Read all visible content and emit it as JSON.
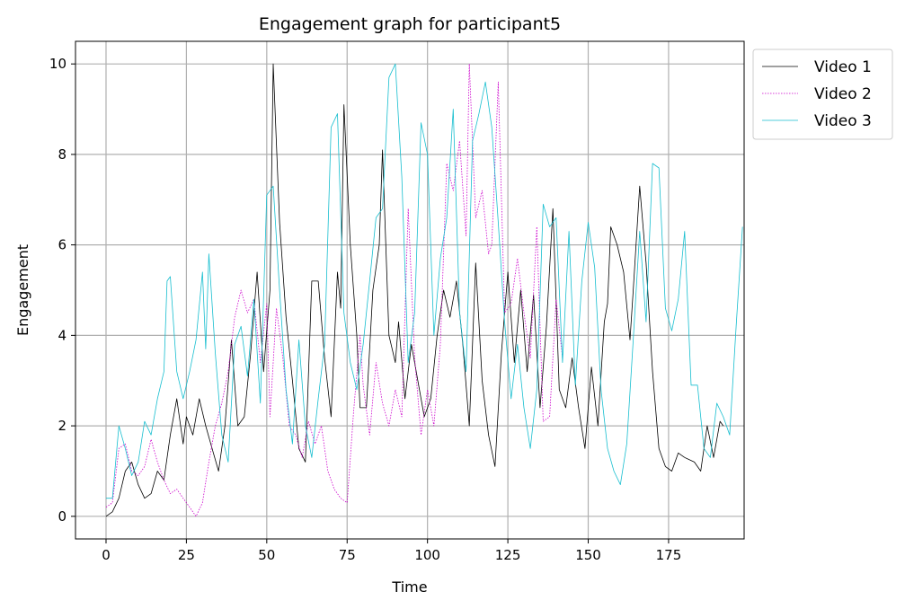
{
  "chart_data": {
    "type": "line",
    "title": "Engagement graph for participant5",
    "xlabel": "Time",
    "ylabel": "Engagement",
    "xlim": [
      -9.5,
      198.5
    ],
    "ylim": [
      -0.5,
      10.5
    ],
    "xticks": [
      0,
      25,
      50,
      75,
      100,
      125,
      150,
      175
    ],
    "yticks": [
      0,
      2,
      4,
      6,
      8,
      10
    ],
    "grid": true,
    "legend_position": "outside-top-right",
    "series": [
      {
        "name": "Video 1",
        "color": "#000000",
        "dash": "solid",
        "points": [
          [
            0,
            0
          ],
          [
            2,
            0.1
          ],
          [
            4,
            0.4
          ],
          [
            6,
            1.0
          ],
          [
            8,
            1.2
          ],
          [
            10,
            0.7
          ],
          [
            12,
            0.4
          ],
          [
            14,
            0.5
          ],
          [
            16,
            1.0
          ],
          [
            18,
            0.8
          ],
          [
            20,
            1.8
          ],
          [
            22,
            2.6
          ],
          [
            24,
            1.6
          ],
          [
            25,
            2.2
          ],
          [
            27,
            1.8
          ],
          [
            29,
            2.6
          ],
          [
            31,
            2.0
          ],
          [
            33,
            1.5
          ],
          [
            35,
            1.0
          ],
          [
            37,
            2.0
          ],
          [
            39,
            3.9
          ],
          [
            41,
            2.0
          ],
          [
            43,
            2.2
          ],
          [
            45,
            3.6
          ],
          [
            47,
            5.4
          ],
          [
            49,
            3.2
          ],
          [
            51,
            5.0
          ],
          [
            52,
            10.0
          ],
          [
            54,
            6.5
          ],
          [
            56,
            4.4
          ],
          [
            58,
            3.0
          ],
          [
            60,
            1.5
          ],
          [
            62,
            1.2
          ],
          [
            64,
            5.2
          ],
          [
            66,
            5.2
          ],
          [
            68,
            3.5
          ],
          [
            70,
            2.2
          ],
          [
            72,
            5.4
          ],
          [
            73,
            4.6
          ],
          [
            74,
            9.1
          ],
          [
            76,
            6.0
          ],
          [
            78,
            4.0
          ],
          [
            79,
            2.4
          ],
          [
            81,
            2.4
          ],
          [
            83,
            5.0
          ],
          [
            85,
            6.0
          ],
          [
            86,
            8.1
          ],
          [
            88,
            4.0
          ],
          [
            90,
            3.4
          ],
          [
            91,
            4.3
          ],
          [
            93,
            2.6
          ],
          [
            95,
            3.8
          ],
          [
            97,
            3.0
          ],
          [
            99,
            2.2
          ],
          [
            101,
            2.6
          ],
          [
            103,
            4.0
          ],
          [
            105,
            5.0
          ],
          [
            107,
            4.4
          ],
          [
            109,
            5.2
          ],
          [
            111,
            3.8
          ],
          [
            113,
            2.0
          ],
          [
            115,
            5.6
          ],
          [
            117,
            3.0
          ],
          [
            119,
            1.8
          ],
          [
            121,
            1.1
          ],
          [
            123,
            3.6
          ],
          [
            125,
            5.4
          ],
          [
            127,
            3.4
          ],
          [
            129,
            5.0
          ],
          [
            131,
            3.2
          ],
          [
            133,
            4.9
          ],
          [
            135,
            2.4
          ],
          [
            137,
            4.2
          ],
          [
            139,
            6.8
          ],
          [
            141,
            2.8
          ],
          [
            143,
            2.4
          ],
          [
            145,
            3.5
          ],
          [
            147,
            2.4
          ],
          [
            149,
            1.5
          ],
          [
            151,
            3.3
          ],
          [
            153,
            2.0
          ],
          [
            155,
            4.3
          ],
          [
            156,
            4.7
          ],
          [
            157,
            6.4
          ],
          [
            159,
            6.0
          ],
          [
            161,
            5.4
          ],
          [
            163,
            3.9
          ],
          [
            164,
            5.0
          ],
          [
            166,
            7.3
          ],
          [
            168,
            5.6
          ],
          [
            170,
            3.2
          ],
          [
            172,
            1.5
          ],
          [
            174,
            1.1
          ],
          [
            176,
            1.0
          ],
          [
            178,
            1.4
          ],
          [
            180,
            1.3
          ],
          [
            183,
            1.2
          ],
          [
            185,
            1.0
          ],
          [
            187,
            2.0
          ],
          [
            189,
            1.3
          ],
          [
            191,
            2.1
          ],
          [
            192,
            2.0
          ]
        ]
      },
      {
        "name": "Video 2",
        "color": "#cc00cc",
        "dash": "dotted",
        "points": [
          [
            0,
            0.2
          ],
          [
            2,
            0.3
          ],
          [
            4,
            1.5
          ],
          [
            6,
            1.6
          ],
          [
            8,
            1.0
          ],
          [
            10,
            0.9
          ],
          [
            12,
            1.1
          ],
          [
            14,
            1.7
          ],
          [
            16,
            1.2
          ],
          [
            18,
            0.8
          ],
          [
            20,
            0.5
          ],
          [
            22,
            0.6
          ],
          [
            24,
            0.4
          ],
          [
            26,
            0.2
          ],
          [
            28,
            0.0
          ],
          [
            30,
            0.3
          ],
          [
            32,
            1.2
          ],
          [
            34,
            2.0
          ],
          [
            36,
            2.5
          ],
          [
            38,
            3.2
          ],
          [
            40,
            4.4
          ],
          [
            42,
            5.0
          ],
          [
            44,
            4.5
          ],
          [
            46,
            4.8
          ],
          [
            48,
            3.4
          ],
          [
            50,
            4.7
          ],
          [
            51,
            2.2
          ],
          [
            53,
            4.6
          ],
          [
            55,
            3.5
          ],
          [
            57,
            2.0
          ],
          [
            59,
            1.8
          ],
          [
            61,
            1.3
          ],
          [
            63,
            2.1
          ],
          [
            65,
            1.6
          ],
          [
            67,
            2.0
          ],
          [
            69,
            1.0
          ],
          [
            71,
            0.6
          ],
          [
            73,
            0.4
          ],
          [
            75,
            0.3
          ],
          [
            77,
            2.3
          ],
          [
            79,
            4.0
          ],
          [
            80,
            2.9
          ],
          [
            82,
            1.8
          ],
          [
            84,
            3.4
          ],
          [
            86,
            2.5
          ],
          [
            88,
            2.0
          ],
          [
            90,
            2.8
          ],
          [
            92,
            2.2
          ],
          [
            94,
            6.8
          ],
          [
            96,
            3.5
          ],
          [
            98,
            1.8
          ],
          [
            100,
            2.8
          ],
          [
            102,
            2.0
          ],
          [
            104,
            3.8
          ],
          [
            106,
            7.8
          ],
          [
            108,
            7.2
          ],
          [
            110,
            8.3
          ],
          [
            112,
            6.2
          ],
          [
            113,
            10.0
          ],
          [
            115,
            6.6
          ],
          [
            117,
            7.2
          ],
          [
            119,
            5.8
          ],
          [
            120,
            6.0
          ],
          [
            122,
            9.6
          ],
          [
            124,
            4.5
          ],
          [
            126,
            4.7
          ],
          [
            128,
            5.7
          ],
          [
            130,
            4.5
          ],
          [
            132,
            3.5
          ],
          [
            134,
            6.4
          ],
          [
            136,
            2.1
          ],
          [
            138,
            2.2
          ],
          [
            140,
            4.8
          ],
          [
            142,
            3.5
          ]
        ]
      },
      {
        "name": "Video 3",
        "color": "#17becf",
        "dash": "solid",
        "points": [
          [
            0,
            0.4
          ],
          [
            2,
            0.4
          ],
          [
            4,
            2.0
          ],
          [
            6,
            1.5
          ],
          [
            8,
            0.9
          ],
          [
            10,
            1.2
          ],
          [
            12,
            2.1
          ],
          [
            14,
            1.8
          ],
          [
            16,
            2.6
          ],
          [
            18,
            3.2
          ],
          [
            19,
            5.2
          ],
          [
            20,
            5.3
          ],
          [
            22,
            3.2
          ],
          [
            24,
            2.6
          ],
          [
            26,
            3.2
          ],
          [
            28,
            3.9
          ],
          [
            30,
            5.4
          ],
          [
            31,
            3.7
          ],
          [
            32,
            5.8
          ],
          [
            34,
            3.6
          ],
          [
            36,
            1.8
          ],
          [
            38,
            1.2
          ],
          [
            40,
            3.8
          ],
          [
            42,
            4.2
          ],
          [
            44,
            3.1
          ],
          [
            46,
            4.8
          ],
          [
            48,
            2.5
          ],
          [
            50,
            7.1
          ],
          [
            52,
            7.3
          ],
          [
            54,
            5.0
          ],
          [
            56,
            2.8
          ],
          [
            58,
            1.6
          ],
          [
            60,
            3.9
          ],
          [
            62,
            2.0
          ],
          [
            64,
            1.3
          ],
          [
            66,
            2.6
          ],
          [
            68,
            3.8
          ],
          [
            70,
            8.6
          ],
          [
            72,
            8.9
          ],
          [
            74,
            4.5
          ],
          [
            76,
            3.4
          ],
          [
            78,
            2.8
          ],
          [
            80,
            3.8
          ],
          [
            82,
            5.2
          ],
          [
            84,
            6.6
          ],
          [
            86,
            6.8
          ],
          [
            88,
            9.7
          ],
          [
            90,
            10.0
          ],
          [
            92,
            7.5
          ],
          [
            94,
            3.4
          ],
          [
            96,
            4.5
          ],
          [
            98,
            8.7
          ],
          [
            100,
            8.0
          ],
          [
            102,
            4.0
          ],
          [
            104,
            5.7
          ],
          [
            106,
            6.6
          ],
          [
            108,
            9.0
          ],
          [
            110,
            4.5
          ],
          [
            112,
            3.2
          ],
          [
            114,
            8.3
          ],
          [
            116,
            8.9
          ],
          [
            118,
            9.6
          ],
          [
            120,
            8.6
          ],
          [
            122,
            6.5
          ],
          [
            124,
            4.3
          ],
          [
            126,
            2.6
          ],
          [
            128,
            3.8
          ],
          [
            130,
            2.4
          ],
          [
            132,
            1.5
          ],
          [
            134,
            2.8
          ],
          [
            136,
            6.9
          ],
          [
            138,
            6.4
          ],
          [
            140,
            6.6
          ],
          [
            142,
            3.4
          ],
          [
            144,
            6.3
          ],
          [
            146,
            2.9
          ],
          [
            148,
            5.2
          ],
          [
            150,
            6.5
          ],
          [
            152,
            5.5
          ],
          [
            154,
            2.8
          ],
          [
            156,
            1.5
          ],
          [
            158,
            1.0
          ],
          [
            160,
            0.7
          ],
          [
            162,
            1.6
          ],
          [
            164,
            3.9
          ],
          [
            166,
            6.3
          ],
          [
            168,
            4.3
          ],
          [
            170,
            7.8
          ],
          [
            172,
            7.7
          ],
          [
            174,
            4.6
          ],
          [
            176,
            4.1
          ],
          [
            178,
            4.8
          ],
          [
            180,
            6.3
          ],
          [
            182,
            2.9
          ],
          [
            184,
            2.9
          ],
          [
            186,
            1.5
          ],
          [
            188,
            1.3
          ],
          [
            190,
            2.5
          ],
          [
            192,
            2.2
          ],
          [
            194,
            1.8
          ],
          [
            196,
            4.2
          ],
          [
            198,
            6.4
          ]
        ]
      }
    ]
  }
}
